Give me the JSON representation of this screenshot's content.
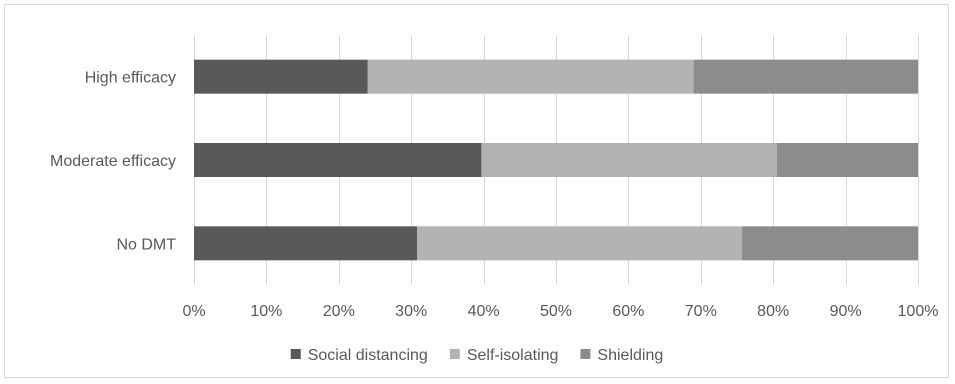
{
  "chart_data": {
    "type": "bar",
    "orientation": "horizontal",
    "stacked": "percent",
    "categories": [
      "High efficacy",
      "Moderate efficacy",
      "No DMT"
    ],
    "series": [
      {
        "name": "Social distancing",
        "values": [
          24,
          39.7,
          30.8
        ],
        "color": "#595959"
      },
      {
        "name": "Self-isolating",
        "values": [
          45,
          40.8,
          44.9
        ],
        "color": "#b3b3b3"
      },
      {
        "name": "Shielding",
        "values": [
          31,
          19.5,
          24.3
        ],
        "color": "#8c8c8c"
      }
    ],
    "x_ticks": [
      "0%",
      "10%",
      "20%",
      "30%",
      "40%",
      "50%",
      "60%",
      "70%",
      "80%",
      "90%",
      "100%"
    ],
    "xlim": [
      0,
      100
    ],
    "grid": true,
    "legend_position": "bottom",
    "title": "",
    "xlabel": "",
    "ylabel": ""
  }
}
